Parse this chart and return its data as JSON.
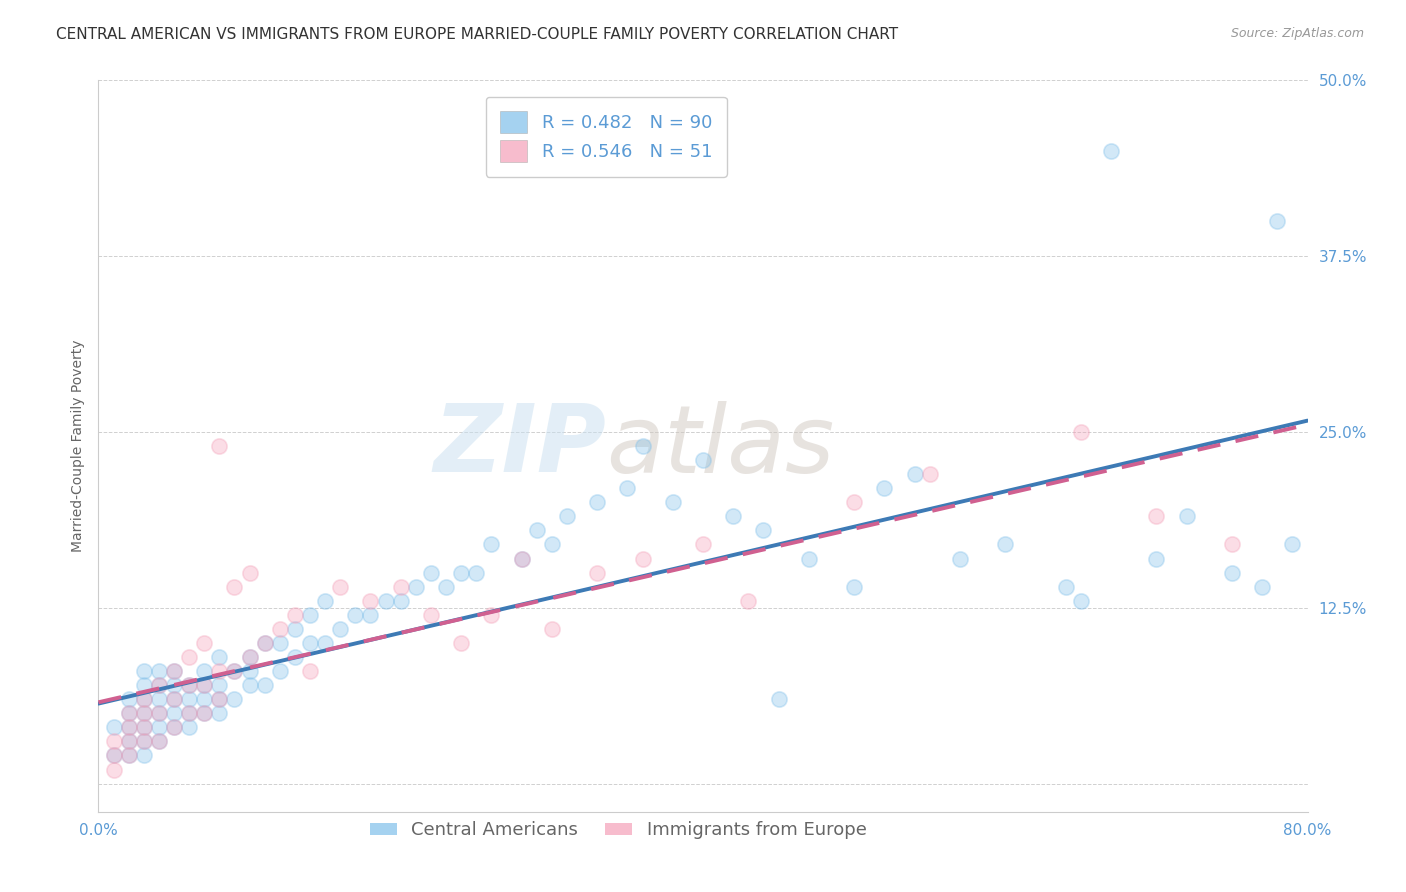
{
  "title": "CENTRAL AMERICAN VS IMMIGRANTS FROM EUROPE MARRIED-COUPLE FAMILY POVERTY CORRELATION CHART",
  "source": "Source: ZipAtlas.com",
  "ylabel": "Married-Couple Family Poverty",
  "xlim": [
    0.0,
    0.8
  ],
  "ylim": [
    -0.02,
    0.5
  ],
  "xticks": [
    0.0,
    0.1,
    0.2,
    0.3,
    0.4,
    0.5,
    0.6,
    0.7,
    0.8
  ],
  "xticklabels": [
    "0.0%",
    "",
    "",
    "",
    "",
    "",
    "",
    "",
    "80.0%"
  ],
  "yticks": [
    0.0,
    0.125,
    0.25,
    0.375,
    0.5
  ],
  "yticklabels": [
    "",
    "12.5%",
    "25.0%",
    "37.5%",
    "50.0%"
  ],
  "blue_R": 0.482,
  "blue_N": 90,
  "pink_R": 0.546,
  "pink_N": 51,
  "blue_color": "#7fbfea",
  "pink_color": "#f4a0b8",
  "blue_line_color": "#3d7ab5",
  "pink_line_color": "#d06090",
  "watermark_zip": "ZIP",
  "watermark_atlas": "atlas",
  "background_color": "#ffffff",
  "grid_color": "#d0d0d0",
  "title_fontsize": 11,
  "axis_label_fontsize": 10,
  "tick_fontsize": 11,
  "legend_fontsize": 13,
  "marker_size": 120,
  "marker_alpha": 0.35,
  "line_width": 2.8,
  "blue_points_x": [
    0.01,
    0.01,
    0.02,
    0.02,
    0.02,
    0.02,
    0.02,
    0.03,
    0.03,
    0.03,
    0.03,
    0.03,
    0.03,
    0.03,
    0.04,
    0.04,
    0.04,
    0.04,
    0.04,
    0.04,
    0.05,
    0.05,
    0.05,
    0.05,
    0.05,
    0.06,
    0.06,
    0.06,
    0.06,
    0.07,
    0.07,
    0.07,
    0.07,
    0.08,
    0.08,
    0.08,
    0.08,
    0.09,
    0.09,
    0.1,
    0.1,
    0.1,
    0.11,
    0.11,
    0.12,
    0.12,
    0.13,
    0.13,
    0.14,
    0.14,
    0.15,
    0.15,
    0.16,
    0.17,
    0.18,
    0.19,
    0.2,
    0.21,
    0.22,
    0.23,
    0.24,
    0.25,
    0.26,
    0.28,
    0.29,
    0.3,
    0.31,
    0.33,
    0.35,
    0.36,
    0.38,
    0.4,
    0.42,
    0.44,
    0.45,
    0.47,
    0.5,
    0.52,
    0.54,
    0.57,
    0.6,
    0.64,
    0.65,
    0.67,
    0.7,
    0.72,
    0.75,
    0.77,
    0.78,
    0.79
  ],
  "blue_points_y": [
    0.02,
    0.04,
    0.02,
    0.03,
    0.04,
    0.05,
    0.06,
    0.02,
    0.03,
    0.04,
    0.05,
    0.06,
    0.07,
    0.08,
    0.03,
    0.04,
    0.05,
    0.06,
    0.07,
    0.08,
    0.04,
    0.05,
    0.06,
    0.07,
    0.08,
    0.04,
    0.05,
    0.06,
    0.07,
    0.05,
    0.06,
    0.07,
    0.08,
    0.05,
    0.06,
    0.07,
    0.09,
    0.06,
    0.08,
    0.07,
    0.08,
    0.09,
    0.07,
    0.1,
    0.08,
    0.1,
    0.09,
    0.11,
    0.1,
    0.12,
    0.1,
    0.13,
    0.11,
    0.12,
    0.12,
    0.13,
    0.13,
    0.14,
    0.15,
    0.14,
    0.15,
    0.15,
    0.17,
    0.16,
    0.18,
    0.17,
    0.19,
    0.2,
    0.21,
    0.24,
    0.2,
    0.23,
    0.19,
    0.18,
    0.06,
    0.16,
    0.14,
    0.21,
    0.22,
    0.16,
    0.17,
    0.14,
    0.13,
    0.45,
    0.16,
    0.19,
    0.15,
    0.14,
    0.4,
    0.17
  ],
  "pink_points_x": [
    0.01,
    0.01,
    0.01,
    0.02,
    0.02,
    0.02,
    0.02,
    0.03,
    0.03,
    0.03,
    0.03,
    0.04,
    0.04,
    0.04,
    0.05,
    0.05,
    0.05,
    0.06,
    0.06,
    0.06,
    0.07,
    0.07,
    0.07,
    0.08,
    0.08,
    0.08,
    0.09,
    0.09,
    0.1,
    0.1,
    0.11,
    0.12,
    0.13,
    0.14,
    0.16,
    0.18,
    0.2,
    0.22,
    0.24,
    0.26,
    0.28,
    0.3,
    0.33,
    0.36,
    0.4,
    0.43,
    0.5,
    0.55,
    0.65,
    0.7,
    0.75
  ],
  "pink_points_y": [
    0.01,
    0.02,
    0.03,
    0.02,
    0.03,
    0.04,
    0.05,
    0.03,
    0.04,
    0.05,
    0.06,
    0.03,
    0.05,
    0.07,
    0.04,
    0.06,
    0.08,
    0.05,
    0.07,
    0.09,
    0.05,
    0.07,
    0.1,
    0.06,
    0.08,
    0.24,
    0.08,
    0.14,
    0.09,
    0.15,
    0.1,
    0.11,
    0.12,
    0.08,
    0.14,
    0.13,
    0.14,
    0.12,
    0.1,
    0.12,
    0.16,
    0.11,
    0.15,
    0.16,
    0.17,
    0.13,
    0.2,
    0.22,
    0.25,
    0.19,
    0.17
  ]
}
